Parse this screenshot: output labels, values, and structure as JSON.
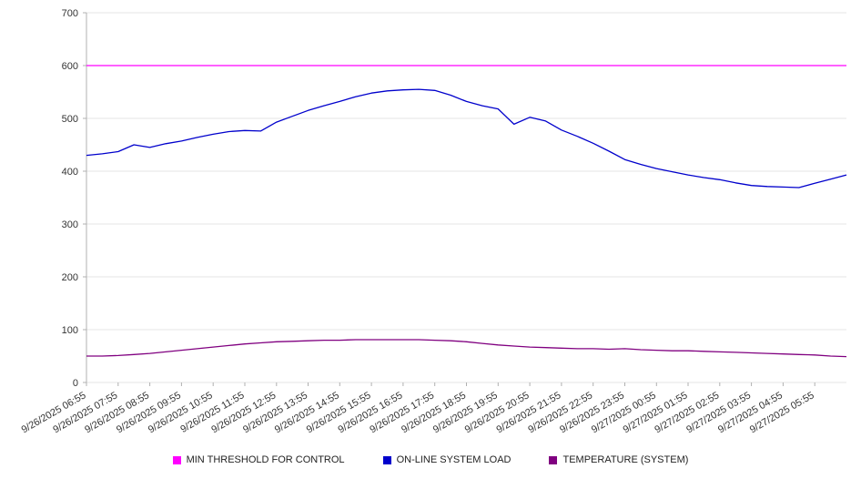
{
  "chart_data": {
    "type": "line",
    "title": "",
    "xlabel": "",
    "ylabel": "",
    "ylim": [
      0,
      700
    ],
    "y_ticks": [
      0,
      100,
      200,
      300,
      400,
      500,
      600,
      700
    ],
    "grid": true,
    "legend_position": "bottom",
    "categories": [
      "9/26/2025 06:55",
      "9/26/2025 07:55",
      "9/26/2025 08:55",
      "9/26/2025 09:55",
      "9/26/2025 10:55",
      "9/26/2025 11:55",
      "9/26/2025 12:55",
      "9/26/2025 13:55",
      "9/26/2025 14:55",
      "9/26/2025 15:55",
      "9/26/2025 16:55",
      "9/26/2025 17:55",
      "9/26/2025 18:55",
      "9/26/2025 19:55",
      "9/26/2025 20:55",
      "9/26/2025 21:55",
      "9/26/2025 22:55",
      "9/26/2025 23:55",
      "9/27/2025 00:55",
      "9/27/2025 01:55",
      "9/27/2025 02:55",
      "9/27/2025 03:55",
      "9/27/2025 04:55",
      "9/27/2025 05:55"
    ],
    "series": [
      {
        "name": "MIN THRESHOLD FOR CONTROL",
        "color": "#ff00ff",
        "values": [
          600,
          600
        ]
      },
      {
        "name": "ON-LINE SYSTEM LOAD",
        "color": "#0000cc",
        "values": [
          430,
          433,
          437,
          450,
          445,
          452,
          457,
          464,
          470,
          475,
          477,
          476,
          493,
          504,
          515,
          524,
          532,
          541,
          548,
          552,
          554,
          555,
          553,
          544,
          532,
          524,
          518,
          489,
          502,
          495,
          478,
          466,
          453,
          438,
          422,
          413,
          405,
          399,
          393,
          388,
          384,
          378,
          373,
          371,
          370,
          369,
          377,
          385,
          393
        ]
      },
      {
        "name": "TEMPERATURE (SYSTEM)",
        "color": "#800080",
        "values": [
          50,
          50,
          51,
          53,
          55,
          58,
          61,
          64,
          67,
          70,
          73,
          75,
          77,
          78,
          79,
          80,
          80,
          81,
          81,
          81,
          81,
          81,
          80,
          79,
          77,
          74,
          71,
          69,
          67,
          66,
          65,
          64,
          64,
          63,
          64,
          62,
          61,
          60,
          60,
          59,
          58,
          57,
          56,
          55,
          54,
          53,
          52,
          50,
          49
        ]
      }
    ]
  }
}
